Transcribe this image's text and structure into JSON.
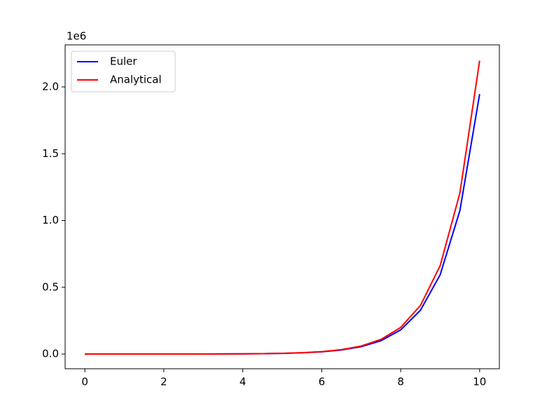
{
  "chart_data": {
    "type": "line",
    "x": [
      0,
      0.5,
      1,
      1.5,
      2,
      2.5,
      3,
      3.5,
      4,
      4.5,
      5,
      5.5,
      6,
      6.5,
      7,
      7.5,
      8,
      8.5,
      9,
      9.5,
      10
    ],
    "series": [
      {
        "name": "Euler",
        "color": "#0000ff",
        "values": [
          14,
          25,
          44,
          81,
          145,
          263,
          476,
          863,
          1563,
          2831,
          5125,
          9290,
          16820,
          30440,
          55170,
          99870,
          181000,
          327600,
          593600,
          1074400,
          1946700
        ]
      },
      {
        "name": "Analytical",
        "color": "#ff0000",
        "values": [
          14,
          25,
          45,
          82,
          149,
          271,
          494,
          900,
          1640,
          2989,
          5446,
          9924,
          18082,
          32948,
          60035,
          109390,
          199330,
          363190,
          661780,
          1205800,
          2197200
        ]
      }
    ],
    "xlim": [
      -0.5,
      10.5
    ],
    "xticks": [
      0,
      2,
      4,
      6,
      8,
      10
    ],
    "ylim": [
      -110000,
      2315000
    ],
    "yticks": [
      {
        "value": 0,
        "label": "0.0"
      },
      {
        "value": 500000,
        "label": "0.5"
      },
      {
        "value": 1000000,
        "label": "1.0"
      },
      {
        "value": 1500000,
        "label": "1.5"
      },
      {
        "value": 2000000,
        "label": "2.0"
      }
    ],
    "y_offset_text": "1e6",
    "legend": "upper left",
    "grid": false
  }
}
